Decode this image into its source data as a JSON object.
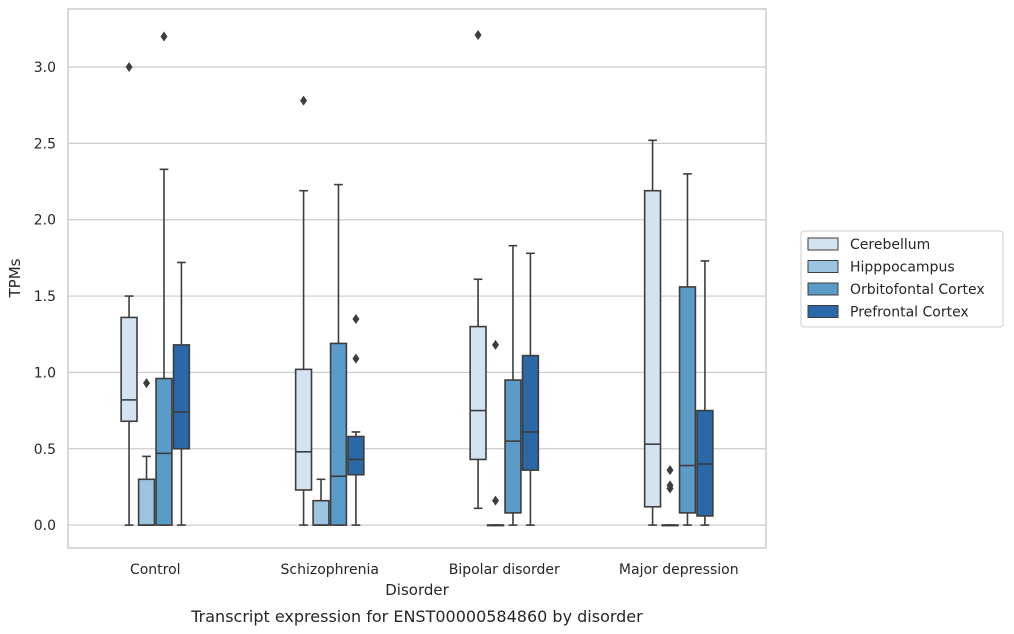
{
  "caption": "Transcript expression for ENST00000584860 by disorder",
  "chart_data": {
    "type": "box",
    "xlabel": "Disorder",
    "ylabel": "TPMs",
    "ylim": [
      -0.15,
      3.38
    ],
    "yticks": [
      0.0,
      0.5,
      1.0,
      1.5,
      2.0,
      2.5,
      3.0
    ],
    "ytick_labels": [
      "0.0",
      "0.5",
      "1.0",
      "1.5",
      "2.0",
      "2.5",
      "3.0"
    ],
    "grid": "horizontal",
    "legend_position": "right",
    "categories": [
      "Control",
      "Schizophrenia",
      "Bipolar disorder",
      "Major depression"
    ],
    "series": [
      {
        "name": "Cerebellum",
        "color": "#d4e3f1",
        "boxes": [
          {
            "whislo": 0.0,
            "q1": 0.68,
            "med": 0.82,
            "q3": 1.36,
            "whishi": 1.5,
            "fliers": [
              3.0
            ]
          },
          {
            "whislo": 0.0,
            "q1": 0.23,
            "med": 0.48,
            "q3": 1.02,
            "whishi": 2.19,
            "fliers": [
              2.78
            ]
          },
          {
            "whislo": 0.11,
            "q1": 0.43,
            "med": 0.75,
            "q3": 1.3,
            "whishi": 1.61,
            "fliers": [
              3.21
            ]
          },
          {
            "whislo": 0.0,
            "q1": 0.12,
            "med": 0.53,
            "q3": 2.19,
            "whishi": 2.52,
            "fliers": []
          }
        ]
      },
      {
        "name": "Hipppocampus",
        "color": "#9cc3df",
        "boxes": [
          {
            "whislo": 0.0,
            "q1": 0.0,
            "med": 0.0,
            "q3": 0.3,
            "whishi": 0.45,
            "fliers": [
              0.93
            ]
          },
          {
            "whislo": 0.0,
            "q1": 0.0,
            "med": 0.0,
            "q3": 0.16,
            "whishi": 0.3,
            "fliers": []
          },
          {
            "whislo": 0.0,
            "q1": 0.0,
            "med": 0.0,
            "q3": 0.0,
            "whishi": 0.0,
            "fliers": [
              0.16,
              1.18
            ]
          },
          {
            "whislo": 0.0,
            "q1": 0.0,
            "med": 0.0,
            "q3": 0.0,
            "whishi": 0.0,
            "fliers": [
              0.24,
              0.26,
              0.36
            ]
          }
        ]
      },
      {
        "name": "Orbitofontal Cortex",
        "color": "#5a9bc8",
        "boxes": [
          {
            "whislo": 0.0,
            "q1": 0.0,
            "med": 0.47,
            "q3": 0.96,
            "whishi": 2.33,
            "fliers": [
              3.2
            ]
          },
          {
            "whislo": 0.0,
            "q1": 0.0,
            "med": 0.32,
            "q3": 1.19,
            "whishi": 2.23,
            "fliers": []
          },
          {
            "whislo": 0.0,
            "q1": 0.08,
            "med": 0.55,
            "q3": 0.95,
            "whishi": 1.83,
            "fliers": []
          },
          {
            "whislo": 0.0,
            "q1": 0.08,
            "med": 0.39,
            "q3": 1.56,
            "whishi": 2.3,
            "fliers": []
          }
        ]
      },
      {
        "name": "Prefrontal Cortex",
        "color": "#2a68a7",
        "boxes": [
          {
            "whislo": 0.0,
            "q1": 0.5,
            "med": 0.74,
            "q3": 1.18,
            "whishi": 1.72,
            "fliers": []
          },
          {
            "whislo": 0.0,
            "q1": 0.33,
            "med": 0.43,
            "q3": 0.58,
            "whishi": 0.61,
            "fliers": [
              1.09,
              1.35
            ]
          },
          {
            "whislo": 0.0,
            "q1": 0.36,
            "med": 0.61,
            "q3": 1.11,
            "whishi": 1.78,
            "fliers": []
          },
          {
            "whislo": 0.0,
            "q1": 0.06,
            "med": 0.4,
            "q3": 0.75,
            "whishi": 1.73,
            "fliers": []
          }
        ]
      }
    ]
  }
}
